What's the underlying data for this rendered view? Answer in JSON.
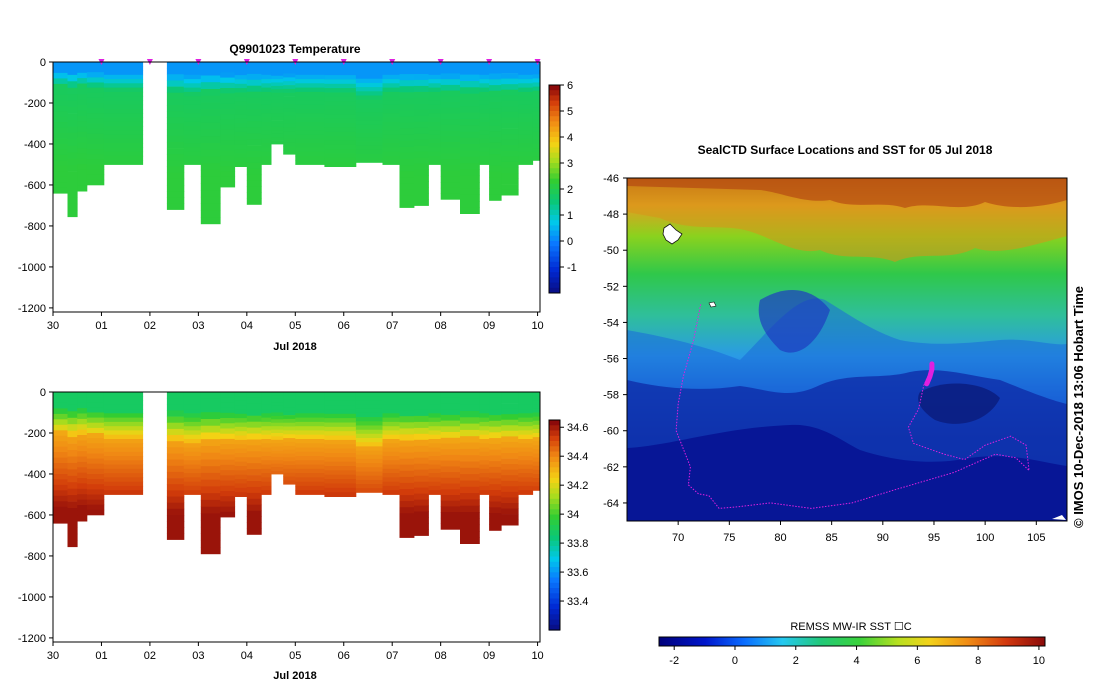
{
  "chart_data": [
    {
      "id": "temperature",
      "type": "heatmap",
      "title": "Q9901023  Temperature",
      "xlabel": "Jul 2018",
      "x_tick_labels": [
        "30",
        "01",
        "02",
        "03",
        "04",
        "05",
        "06",
        "07",
        "08",
        "09",
        "10"
      ],
      "x_range_days": [
        0,
        10.05
      ],
      "ylim": [
        -1220,
        0
      ],
      "y_tick_labels": [
        "0",
        "-200",
        "-400",
        "-600",
        "-800",
        "-1000",
        "-1200"
      ],
      "y_ticks": [
        0,
        -200,
        -400,
        -600,
        -800,
        -1000,
        -1200
      ],
      "colorbar": {
        "min": -2,
        "max": 6,
        "ticks": [
          "6",
          "5",
          "4",
          "3",
          "2",
          "1",
          "0",
          "-1"
        ],
        "tick_values": [
          6,
          5,
          4,
          3,
          2,
          1,
          0,
          -1
        ]
      },
      "surface_marker_days": [
        1,
        2,
        3,
        4,
        5,
        6,
        7,
        8,
        9,
        10
      ],
      "profiles": [
        {
          "t0": 0.0,
          "t1": 0.3,
          "depth": 640,
          "mix": 120
        },
        {
          "t0": 0.3,
          "t1": 0.5,
          "depth": 755,
          "mix": 130
        },
        {
          "t0": 0.5,
          "t1": 0.7,
          "depth": 630,
          "mix": 120
        },
        {
          "t0": 0.7,
          "t1": 1.05,
          "depth": 600,
          "mix": 130
        },
        {
          "t0": 1.05,
          "t1": 1.85,
          "depth": 500,
          "mix": 140
        },
        {
          "t0": 2.35,
          "t1": 2.7,
          "depth": 720,
          "mix": 150
        },
        {
          "t0": 2.7,
          "t1": 3.05,
          "depth": 500,
          "mix": 160
        },
        {
          "t0": 3.05,
          "t1": 3.45,
          "depth": 790,
          "mix": 150
        },
        {
          "t0": 3.45,
          "t1": 3.75,
          "depth": 610,
          "mix": 150
        },
        {
          "t0": 3.75,
          "t1": 4.0,
          "depth": 510,
          "mix": 150
        },
        {
          "t0": 4.0,
          "t1": 4.3,
          "depth": 695,
          "mix": 150
        },
        {
          "t0": 4.3,
          "t1": 4.5,
          "depth": 500,
          "mix": 150
        },
        {
          "t0": 4.5,
          "t1": 4.75,
          "depth": 400,
          "mix": 150
        },
        {
          "t0": 4.75,
          "t1": 5.0,
          "depth": 450,
          "mix": 150
        },
        {
          "t0": 5.0,
          "t1": 5.6,
          "depth": 500,
          "mix": 150
        },
        {
          "t0": 5.6,
          "t1": 6.25,
          "depth": 510,
          "mix": 150
        },
        {
          "t0": 6.25,
          "t1": 6.8,
          "depth": 490,
          "mix": 180
        },
        {
          "t0": 6.8,
          "t1": 7.15,
          "depth": 500,
          "mix": 150
        },
        {
          "t0": 7.15,
          "t1": 7.45,
          "depth": 710,
          "mix": 150
        },
        {
          "t0": 7.45,
          "t1": 7.75,
          "depth": 700,
          "mix": 150
        },
        {
          "t0": 7.75,
          "t1": 8.0,
          "depth": 500,
          "mix": 150
        },
        {
          "t0": 8.0,
          "t1": 8.4,
          "depth": 670,
          "mix": 150
        },
        {
          "t0": 8.4,
          "t1": 8.8,
          "depth": 740,
          "mix": 150
        },
        {
          "t0": 8.8,
          "t1": 9.0,
          "depth": 500,
          "mix": 150
        },
        {
          "t0": 9.0,
          "t1": 9.25,
          "depth": 675,
          "mix": 150
        },
        {
          "t0": 9.25,
          "t1": 9.6,
          "depth": 650,
          "mix": 150
        },
        {
          "t0": 9.6,
          "t1": 9.9,
          "depth": 500,
          "mix": 150
        },
        {
          "t0": 9.9,
          "t1": 10.05,
          "depth": 480,
          "mix": 150
        }
      ]
    },
    {
      "id": "salinity",
      "type": "heatmap",
      "title": "",
      "xlabel": "Jul 2018",
      "x_tick_labels": [
        "30",
        "01",
        "02",
        "03",
        "04",
        "05",
        "06",
        "07",
        "08",
        "09",
        "10"
      ],
      "ylim": [
        -1220,
        0
      ],
      "y_tick_labels": [
        "0",
        "-200",
        "-400",
        "-600",
        "-800",
        "-1000",
        "-1200"
      ],
      "y_ticks": [
        0,
        -200,
        -400,
        -600,
        -800,
        -1000,
        -1200
      ],
      "colorbar": {
        "min": 33.2,
        "max": 34.65,
        "ticks": [
          "34.6",
          "34.4",
          "34.2",
          "34",
          "33.8",
          "33.6",
          "33.4"
        ],
        "tick_values": [
          34.6,
          34.4,
          34.2,
          34.0,
          33.8,
          33.6,
          33.4
        ]
      }
    },
    {
      "id": "sst_map",
      "type": "heatmap",
      "title": "SealCTD Surface Locations and SST for 05 Jul 2018",
      "x_tick_labels": [
        "70",
        "75",
        "80",
        "85",
        "90",
        "95",
        "100",
        "105"
      ],
      "x_ticks": [
        70,
        75,
        80,
        85,
        90,
        95,
        100,
        105
      ],
      "xlim": [
        65,
        108
      ],
      "y_tick_labels": [
        "-46",
        "-48",
        "-50",
        "-52",
        "-54",
        "-56",
        "-58",
        "-60",
        "-62",
        "-64"
      ],
      "y_ticks": [
        -46,
        -48,
        -50,
        -52,
        -54,
        -56,
        -58,
        -60,
        -62,
        -64
      ],
      "ylim": [
        -65,
        -46
      ],
      "colorbar": {
        "label": "REMSS MW-IR SST ☐C",
        "min": -2.5,
        "max": 10.2,
        "ticks": [
          "-2",
          "0",
          "2",
          "4",
          "6",
          "8",
          "10"
        ],
        "tick_values": [
          -2,
          0,
          2,
          4,
          6,
          8,
          10
        ]
      },
      "track_points": [
        [
          72.2,
          -53
        ],
        [
          71.5,
          -55
        ],
        [
          70.5,
          -57
        ],
        [
          70.0,
          -58.5
        ],
        [
          69.8,
          -60
        ],
        [
          70.5,
          -61
        ],
        [
          71.2,
          -62
        ],
        [
          71.0,
          -63
        ],
        [
          72.0,
          -63.5
        ],
        [
          73.0,
          -63.6
        ],
        [
          74.0,
          -64.3
        ],
        [
          76.0,
          -64.2
        ],
        [
          79.0,
          -64.0
        ],
        [
          83.0,
          -64.3
        ],
        [
          87.0,
          -64.0
        ],
        [
          91.0,
          -63.3
        ],
        [
          94.0,
          -62.8
        ],
        [
          97.0,
          -62.3
        ],
        [
          99.0,
          -61.8
        ],
        [
          101.0,
          -61.3
        ],
        [
          103.0,
          -61.5
        ],
        [
          104.3,
          -62.2
        ],
        [
          104.0,
          -60.8
        ],
        [
          102.5,
          -60.3
        ],
        [
          100.0,
          -60.8
        ],
        [
          98.0,
          -61.6
        ],
        [
          96.0,
          -61.3
        ],
        [
          93.0,
          -60.7
        ],
        [
          92.5,
          -59.8
        ],
        [
          93.5,
          -58.8
        ],
        [
          94.0,
          -57.5
        ],
        [
          94.8,
          -56.5
        ]
      ],
      "recent_track": [
        [
          94.3,
          -57.4
        ],
        [
          94.6,
          -57.0
        ],
        [
          94.8,
          -56.6
        ],
        [
          94.8,
          -56.3
        ]
      ]
    }
  ],
  "credit": "©  IMOS 10-Dec-2018 13:06 Hobart Time"
}
